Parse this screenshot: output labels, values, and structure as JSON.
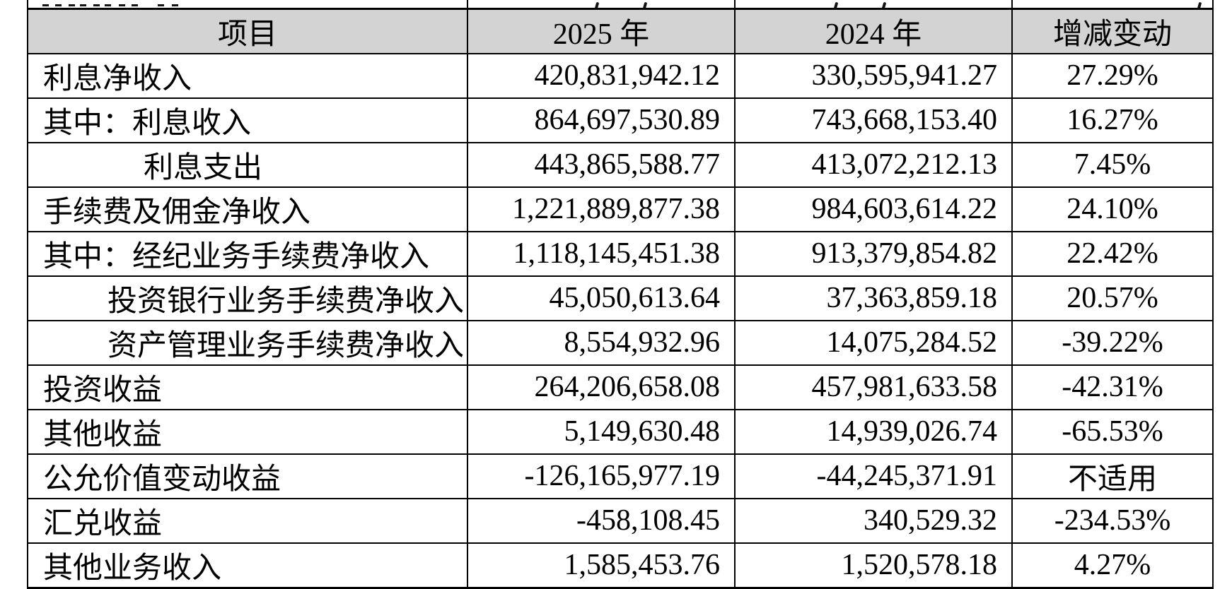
{
  "table": {
    "header_bg": "#d3d3d3",
    "border_color": "#000000",
    "columns": [
      {
        "label": "项目"
      },
      {
        "label": "2025 年"
      },
      {
        "label": "2024 年"
      },
      {
        "label": "增减变动"
      }
    ],
    "rows": [
      {
        "item": "利息净收入",
        "indent": 0,
        "y2025": "420,831,942.12",
        "y2024": "330,595,941.27",
        "change": "27.29%"
      },
      {
        "item": "其中：利息收入",
        "indent": 0,
        "y2025": "864,697,530.89",
        "y2024": "743,668,153.40",
        "change": "16.27%"
      },
      {
        "item": "利息支出",
        "indent": 2,
        "y2025": "443,865,588.77",
        "y2024": "413,072,212.13",
        "change": "7.45%"
      },
      {
        "item": "手续费及佣金净收入",
        "indent": 0,
        "y2025": "1,221,889,877.38",
        "y2024": "984,603,614.22",
        "change": "24.10%"
      },
      {
        "item": "其中：经纪业务手续费净收入",
        "indent": 0,
        "y2025": "1,118,145,451.38",
        "y2024": "913,379,854.82",
        "change": "22.42%"
      },
      {
        "item": "投资银行业务手续费净收入",
        "indent": 1,
        "y2025": "45,050,613.64",
        "y2024": "37,363,859.18",
        "change": "20.57%"
      },
      {
        "item": "资产管理业务手续费净收入",
        "indent": 1,
        "y2025": "8,554,932.96",
        "y2024": "14,075,284.52",
        "change": "-39.22%"
      },
      {
        "item": "投资收益",
        "indent": 0,
        "y2025": "264,206,658.08",
        "y2024": "457,981,633.58",
        "change": "-42.31%"
      },
      {
        "item": "其他收益",
        "indent": 0,
        "y2025": "5,149,630.48",
        "y2024": "14,939,026.74",
        "change": "-65.53%"
      },
      {
        "item": "公允价值变动收益",
        "indent": 0,
        "y2025": "-126,165,977.19",
        "y2024": "-44,245,371.91",
        "change": "不适用"
      },
      {
        "item": "汇兑收益",
        "indent": 0,
        "y2025": "-458,108.45",
        "y2024": "340,529.32",
        "change": "-234.53%"
      },
      {
        "item": "其他业务收入",
        "indent": 0,
        "y2025": "1,585,453.76",
        "y2024": "1,520,578.18",
        "change": "4.27%"
      }
    ],
    "clipped_fragments": {
      "col1": {
        "type": "stroke",
        "x": [
          20,
          38,
          57,
          73,
          92,
          108,
          128,
          146,
          183,
          203
        ]
      },
      "col2": {
        "type": "comma",
        "x": [
          180,
          248
        ]
      },
      "col3": {
        "type": "comma",
        "x": [
          140,
          208
        ]
      },
      "col4": {
        "type": "comma",
        "x": [
          262
        ]
      }
    }
  }
}
